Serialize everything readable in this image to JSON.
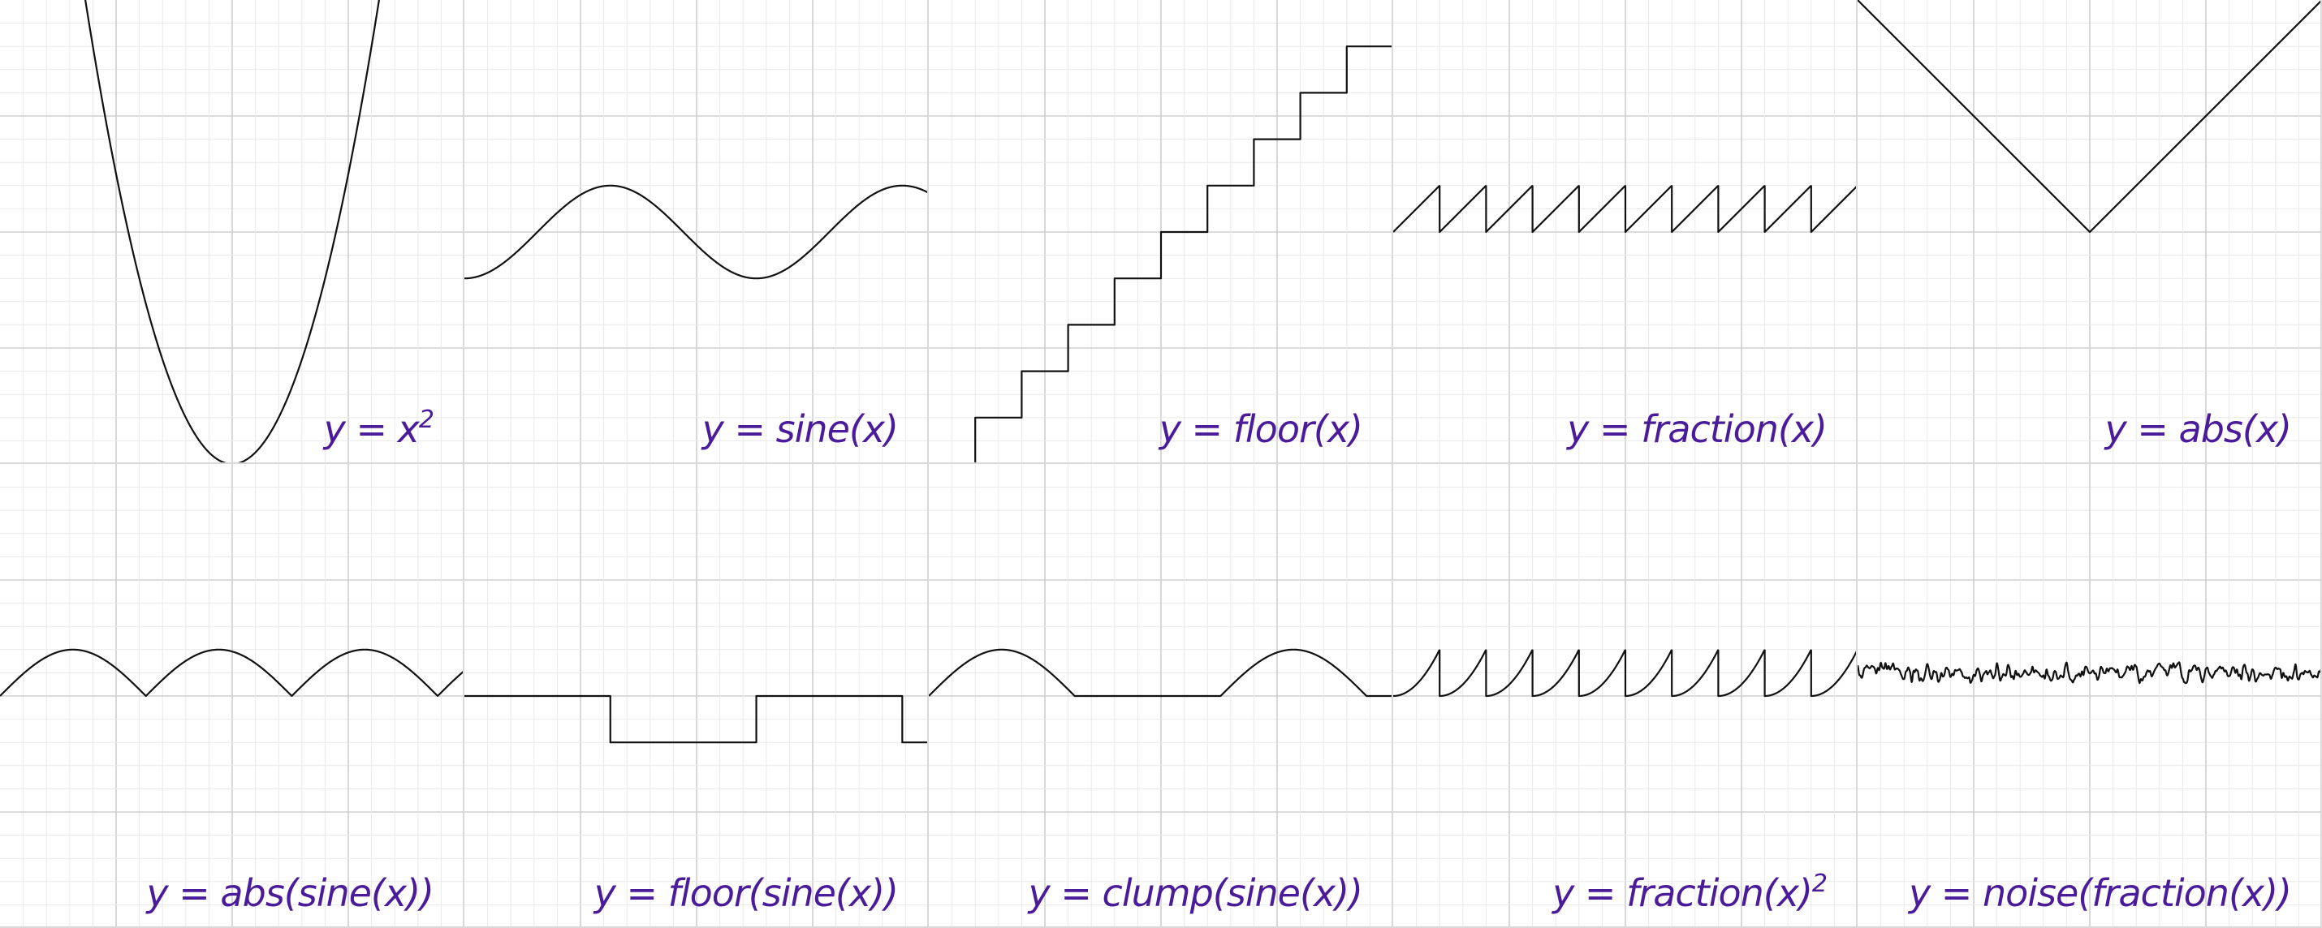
{
  "theme": {
    "caption_color": "#4b1c9a",
    "curve_color": "#111111",
    "grid_minor_color": "#e9e9e9",
    "grid_major_color": "#cfcfcf"
  },
  "chart_data": [
    {
      "type": "line",
      "caption": "y = x",
      "caption_superscript": "2",
      "function": "square",
      "xlim": [
        -5,
        5
      ],
      "ylim": [
        0,
        10
      ],
      "grid": true
    },
    {
      "type": "line",
      "caption": "y = sine(x)",
      "function": "sine",
      "xlim": [
        -1.5708,
        8.4248
      ],
      "ylim": [
        -5,
        5
      ],
      "grid": true
    },
    {
      "type": "line",
      "caption": "y = floor(x)",
      "function": "floor",
      "xlim": [
        0,
        10
      ],
      "ylim": [
        0,
        10
      ],
      "grid": true
    },
    {
      "type": "line",
      "caption": "y = fraction(x)",
      "function": "fraction",
      "xlim": [
        0,
        10
      ],
      "ylim": [
        -5,
        5
      ],
      "grid": true
    },
    {
      "type": "line",
      "caption": "y = abs(x)",
      "function": "abs",
      "xlim": [
        -5,
        5
      ],
      "ylim": [
        -5,
        5
      ],
      "grid": true
    },
    {
      "type": "line",
      "caption": "y = abs(sine(x))",
      "function": "abs-sine",
      "xlim": [
        0,
        10
      ],
      "ylim": [
        -5,
        5
      ],
      "grid": true
    },
    {
      "type": "line",
      "caption": "y = floor(sine(x))",
      "function": "floor-sine",
      "xlim": [
        0,
        10
      ],
      "ylim": [
        -5,
        5
      ],
      "grid": true
    },
    {
      "type": "line",
      "caption": "y = clump(sine(x))",
      "function": "clump-sine",
      "xlim": [
        0,
        10
      ],
      "ylim": [
        -5,
        5
      ],
      "grid": true
    },
    {
      "type": "line",
      "caption": "y = fraction(x)",
      "caption_superscript": "2",
      "function": "fraction-squared",
      "xlim": [
        0,
        10
      ],
      "ylim": [
        -5,
        5
      ],
      "grid": true
    },
    {
      "type": "line",
      "caption": "y = noise(fraction(x))",
      "function": "noise-fraction",
      "xlim": [
        0,
        10
      ],
      "ylim": [
        -5,
        5
      ],
      "grid": true
    }
  ]
}
